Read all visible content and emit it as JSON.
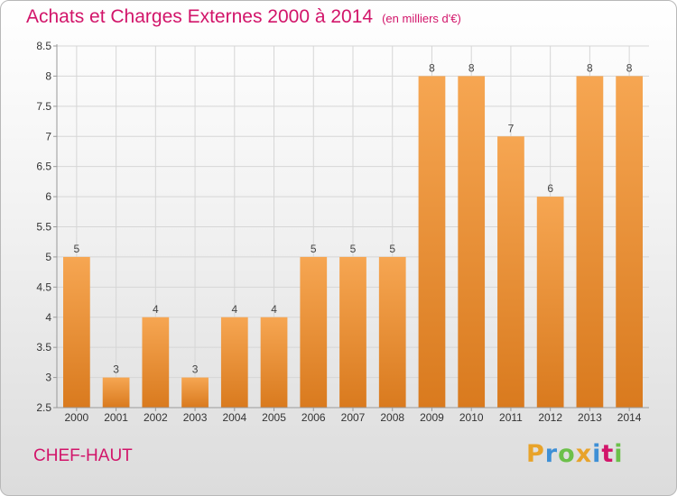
{
  "title": "Achats et Charges Externes 2000 à 2014",
  "unit": "(en milliers d'€)",
  "place": "CHEF-HAUT",
  "logo": {
    "letters": [
      "P",
      "r",
      "o",
      "x",
      "i",
      "t",
      "i"
    ],
    "colors": [
      "#e8a32a",
      "#3d8fd6",
      "#6cc04a",
      "#e8a32a",
      "#3d8fd6",
      "#d2156a",
      "#6cc04a"
    ]
  },
  "colors": {
    "bar_light": "#f6a652",
    "bar_dark": "#d97a1e",
    "title": "#d2156a"
  },
  "chart_data": {
    "type": "bar",
    "categories": [
      "2000",
      "2001",
      "2002",
      "2003",
      "2004",
      "2005",
      "2006",
      "2007",
      "2008",
      "2009",
      "2010",
      "2011",
      "2012",
      "2013",
      "2014"
    ],
    "values": [
      5,
      3,
      4,
      3,
      4,
      4,
      5,
      5,
      5,
      8,
      8,
      7,
      6,
      8,
      8
    ],
    "labels": [
      "5",
      "3",
      "4",
      "3",
      "4",
      "4",
      "5",
      "5",
      "5",
      "8",
      "8",
      "7",
      "6",
      "8",
      "8"
    ],
    "yticks": [
      "2.5",
      "3",
      "3.5",
      "4",
      "4.5",
      "5",
      "5.5",
      "6",
      "6.5",
      "7",
      "7.5",
      "8",
      "8.5"
    ],
    "ylim": [
      2.5,
      8.5
    ],
    "grid": true,
    "title": "Achats et Charges Externes 2000 à 2014",
    "xlabel": "",
    "ylabel": ""
  }
}
